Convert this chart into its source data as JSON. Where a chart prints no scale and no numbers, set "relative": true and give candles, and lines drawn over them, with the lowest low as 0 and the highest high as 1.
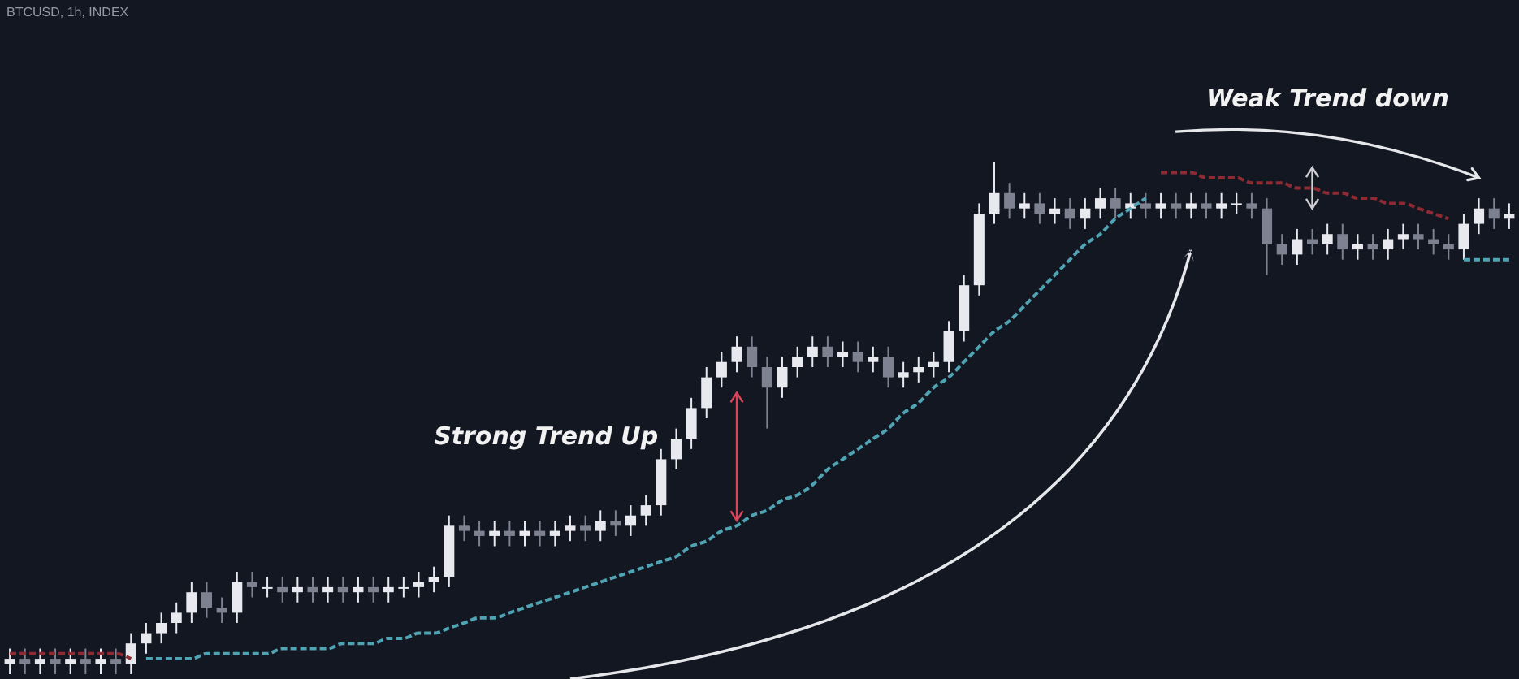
{
  "chart_data": {
    "type": "candlestick",
    "title": "BTCUSD, 1h, INDEX",
    "relative": true,
    "annotations": [
      "Strong Trend Up",
      "Weak Trend down"
    ],
    "categories": [
      null,
      null,
      null,
      null,
      null,
      null,
      null,
      null,
      null,
      null,
      null,
      null,
      null,
      null,
      null,
      null,
      null,
      null,
      null,
      null,
      null,
      null,
      null,
      null,
      null,
      null,
      null,
      null,
      null,
      null,
      null,
      null,
      null,
      null,
      null,
      null,
      null,
      null,
      null,
      null,
      null,
      null,
      null,
      null,
      null,
      null,
      null,
      null,
      null,
      null,
      null,
      null,
      null,
      null,
      null,
      null,
      null,
      null,
      null,
      null,
      null,
      null,
      null,
      null,
      null,
      null,
      null,
      null,
      null,
      null,
      null,
      null,
      null,
      null,
      null,
      null,
      null,
      null,
      null,
      null,
      null,
      null,
      null,
      null,
      null,
      null,
      null,
      null,
      null,
      null,
      null,
      null,
      null,
      null,
      null,
      null,
      null,
      null,
      null,
      null
    ],
    "ohlc": [
      [
        0.02,
        0.05,
        0,
        0.03
      ],
      [
        0.03,
        0.05,
        0,
        0.02
      ],
      [
        0.02,
        0.05,
        0,
        0.03
      ],
      [
        0.03,
        0.05,
        0,
        0.02
      ],
      [
        0.02,
        0.05,
        0,
        0.03
      ],
      [
        0.03,
        0.05,
        0,
        0.02
      ],
      [
        0.02,
        0.05,
        0,
        0.03
      ],
      [
        0.03,
        0.05,
        0,
        0.02
      ],
      [
        0.02,
        0.08,
        0,
        0.06
      ],
      [
        0.06,
        0.1,
        0.04,
        0.08
      ],
      [
        0.08,
        0.12,
        0.06,
        0.1
      ],
      [
        0.1,
        0.14,
        0.08,
        0.12
      ],
      [
        0.12,
        0.18,
        0.1,
        0.16
      ],
      [
        0.16,
        0.18,
        0.11,
        0.13
      ],
      [
        0.13,
        0.15,
        0.1,
        0.12
      ],
      [
        0.12,
        0.2,
        0.1,
        0.18
      ],
      [
        0.18,
        0.2,
        0.15,
        0.17
      ],
      [
        0.17,
        0.19,
        0.15,
        0.17
      ],
      [
        0.17,
        0.19,
        0.14,
        0.16
      ],
      [
        0.16,
        0.19,
        0.14,
        0.17
      ],
      [
        0.17,
        0.19,
        0.14,
        0.16
      ],
      [
        0.16,
        0.19,
        0.14,
        0.17
      ],
      [
        0.17,
        0.19,
        0.14,
        0.16
      ],
      [
        0.16,
        0.19,
        0.14,
        0.17
      ],
      [
        0.17,
        0.19,
        0.14,
        0.16
      ],
      [
        0.16,
        0.19,
        0.14,
        0.17
      ],
      [
        0.17,
        0.19,
        0.15,
        0.17
      ],
      [
        0.17,
        0.2,
        0.15,
        0.18
      ],
      [
        0.18,
        0.21,
        0.16,
        0.19
      ],
      [
        0.19,
        0.31,
        0.17,
        0.29
      ],
      [
        0.29,
        0.31,
        0.26,
        0.28
      ],
      [
        0.28,
        0.3,
        0.25,
        0.27
      ],
      [
        0.27,
        0.3,
        0.25,
        0.28
      ],
      [
        0.28,
        0.3,
        0.25,
        0.27
      ],
      [
        0.27,
        0.3,
        0.25,
        0.28
      ],
      [
        0.28,
        0.3,
        0.25,
        0.27
      ],
      [
        0.27,
        0.3,
        0.25,
        0.28
      ],
      [
        0.28,
        0.31,
        0.26,
        0.29
      ],
      [
        0.29,
        0.31,
        0.26,
        0.28
      ],
      [
        0.28,
        0.32,
        0.26,
        0.3
      ],
      [
        0.3,
        0.32,
        0.27,
        0.29
      ],
      [
        0.29,
        0.33,
        0.27,
        0.31
      ],
      [
        0.31,
        0.35,
        0.29,
        0.33
      ],
      [
        0.33,
        0.44,
        0.31,
        0.42
      ],
      [
        0.42,
        0.48,
        0.4,
        0.46
      ],
      [
        0.46,
        0.54,
        0.44,
        0.52
      ],
      [
        0.52,
        0.6,
        0.5,
        0.58
      ],
      [
        0.58,
        0.63,
        0.56,
        0.61
      ],
      [
        0.61,
        0.66,
        0.59,
        0.64
      ],
      [
        0.64,
        0.66,
        0.58,
        0.6
      ],
      [
        0.6,
        0.62,
        0.48,
        0.56
      ],
      [
        0.56,
        0.62,
        0.54,
        0.6
      ],
      [
        0.6,
        0.64,
        0.58,
        0.62
      ],
      [
        0.62,
        0.66,
        0.6,
        0.64
      ],
      [
        0.64,
        0.66,
        0.6,
        0.62
      ],
      [
        0.62,
        0.65,
        0.6,
        0.63
      ],
      [
        0.63,
        0.65,
        0.59,
        0.61
      ],
      [
        0.61,
        0.64,
        0.59,
        0.62
      ],
      [
        0.62,
        0.64,
        0.56,
        0.58
      ],
      [
        0.58,
        0.61,
        0.56,
        0.59
      ],
      [
        0.59,
        0.62,
        0.57,
        0.6
      ],
      [
        0.6,
        0.63,
        0.58,
        0.61
      ],
      [
        0.61,
        0.69,
        0.59,
        0.67
      ],
      [
        0.67,
        0.78,
        0.65,
        0.76
      ],
      [
        0.76,
        0.92,
        0.74,
        0.9
      ],
      [
        0.9,
        1,
        0.88,
        0.94
      ],
      [
        0.94,
        0.96,
        0.89,
        0.91
      ],
      [
        0.91,
        0.94,
        0.89,
        0.92
      ],
      [
        0.92,
        0.94,
        0.88,
        0.9
      ],
      [
        0.9,
        0.93,
        0.88,
        0.91
      ],
      [
        0.91,
        0.93,
        0.87,
        0.89
      ],
      [
        0.89,
        0.93,
        0.87,
        0.91
      ],
      [
        0.91,
        0.95,
        0.89,
        0.93
      ],
      [
        0.93,
        0.95,
        0.89,
        0.91
      ],
      [
        0.91,
        0.94,
        0.89,
        0.92
      ],
      [
        0.92,
        0.94,
        0.89,
        0.91
      ],
      [
        0.91,
        0.94,
        0.89,
        0.92
      ],
      [
        0.92,
        0.94,
        0.89,
        0.91
      ],
      [
        0.91,
        0.94,
        0.89,
        0.92
      ],
      [
        0.92,
        0.94,
        0.89,
        0.91
      ],
      [
        0.91,
        0.94,
        0.89,
        0.92
      ],
      [
        0.92,
        0.94,
        0.9,
        0.92
      ],
      [
        0.92,
        0.94,
        0.89,
        0.91
      ],
      [
        0.91,
        0.93,
        0.78,
        0.84
      ],
      [
        0.84,
        0.86,
        0.8,
        0.82
      ],
      [
        0.82,
        0.87,
        0.8,
        0.85
      ],
      [
        0.85,
        0.87,
        0.82,
        0.84
      ],
      [
        0.84,
        0.88,
        0.82,
        0.86
      ],
      [
        0.86,
        0.88,
        0.81,
        0.83
      ],
      [
        0.83,
        0.86,
        0.81,
        0.84
      ],
      [
        0.84,
        0.86,
        0.81,
        0.83
      ],
      [
        0.83,
        0.87,
        0.81,
        0.85
      ],
      [
        0.85,
        0.88,
        0.83,
        0.86
      ],
      [
        0.86,
        0.88,
        0.83,
        0.85
      ],
      [
        0.85,
        0.87,
        0.82,
        0.84
      ],
      [
        0.84,
        0.86,
        0.81,
        0.83
      ],
      [
        0.83,
        0.9,
        0.81,
        0.88
      ],
      [
        0.88,
        0.93,
        0.86,
        0.91
      ],
      [
        0.91,
        0.93,
        0.87,
        0.89
      ],
      [
        0.89,
        0.92,
        0.87,
        0.9
      ]
    ],
    "line_style": "dashed",
    "series": [
      {
        "type": "line",
        "color": "#8e2a33",
        "values": [
          0.04,
          0.04,
          0.04,
          0.04,
          0.04,
          0.04,
          0.04,
          0.04,
          0.03,
          null,
          null,
          null,
          null,
          null,
          null,
          null,
          null,
          null,
          null,
          null,
          null,
          null,
          null,
          null,
          null,
          null,
          null,
          null,
          null,
          null,
          null,
          null,
          null,
          null,
          null,
          null,
          null,
          null,
          null,
          null,
          null,
          null,
          null,
          null,
          null,
          null,
          null,
          null,
          null,
          null,
          null,
          null,
          null,
          null,
          null,
          null,
          null,
          null,
          null,
          null,
          null,
          null,
          null,
          null,
          null,
          null,
          null,
          null,
          null,
          null,
          null,
          null,
          null,
          null,
          null,
          null,
          0.98,
          0.98,
          0.98,
          0.97,
          0.97,
          0.97,
          0.96,
          0.96,
          0.96,
          0.95,
          0.95,
          0.94,
          0.94,
          0.93,
          0.93,
          0.92,
          0.92,
          0.91,
          0.9,
          0.89,
          null,
          null,
          null,
          null
        ]
      },
      {
        "type": "line",
        "color": "#4fa3b3",
        "values": [
          null,
          null,
          null,
          null,
          null,
          null,
          null,
          null,
          null,
          0.03,
          0.03,
          0.03,
          0.03,
          0.04,
          0.04,
          0.04,
          0.04,
          0.04,
          0.05,
          0.05,
          0.05,
          0.05,
          0.06,
          0.06,
          0.06,
          0.07,
          0.07,
          0.08,
          0.08,
          0.09,
          0.1,
          0.11,
          0.11,
          0.12,
          0.13,
          0.14,
          0.15,
          0.16,
          0.17,
          0.18,
          0.19,
          0.2,
          0.21,
          0.22,
          0.23,
          0.25,
          0.26,
          0.28,
          0.29,
          0.31,
          0.32,
          0.34,
          0.35,
          0.37,
          0.4,
          0.42,
          0.44,
          0.46,
          0.48,
          0.51,
          0.53,
          0.56,
          0.58,
          0.61,
          0.64,
          0.67,
          0.69,
          0.72,
          0.75,
          0.78,
          0.81,
          0.84,
          0.86,
          0.89,
          0.91,
          0.93,
          null,
          null,
          null,
          null,
          null,
          null,
          null,
          null,
          null,
          null,
          null,
          null,
          null,
          null,
          null,
          null,
          null,
          null,
          null,
          null,
          null,
          null,
          null,
          null
        ]
      },
      {
        "type": "line",
        "color": "#4fa3b3",
        "values": [
          null,
          null,
          null,
          null,
          null,
          null,
          null,
          null,
          null,
          null,
          null,
          null,
          null,
          null,
          null,
          null,
          null,
          null,
          null,
          null,
          null,
          null,
          null,
          null,
          null,
          null,
          null,
          null,
          null,
          null,
          null,
          null,
          null,
          null,
          null,
          null,
          null,
          null,
          null,
          null,
          null,
          null,
          null,
          null,
          null,
          null,
          null,
          null,
          null,
          null,
          null,
          null,
          null,
          null,
          null,
          null,
          null,
          null,
          null,
          null,
          null,
          null,
          null,
          null,
          null,
          null,
          null,
          null,
          null,
          null,
          null,
          null,
          null,
          null,
          null,
          null,
          null,
          null,
          null,
          null,
          null,
          null,
          null,
          null,
          null,
          null,
          null,
          null,
          null,
          null,
          null,
          null,
          null,
          null,
          null,
          null,
          0.81,
          0.81,
          0.81,
          0.81
        ]
      }
    ]
  }
}
